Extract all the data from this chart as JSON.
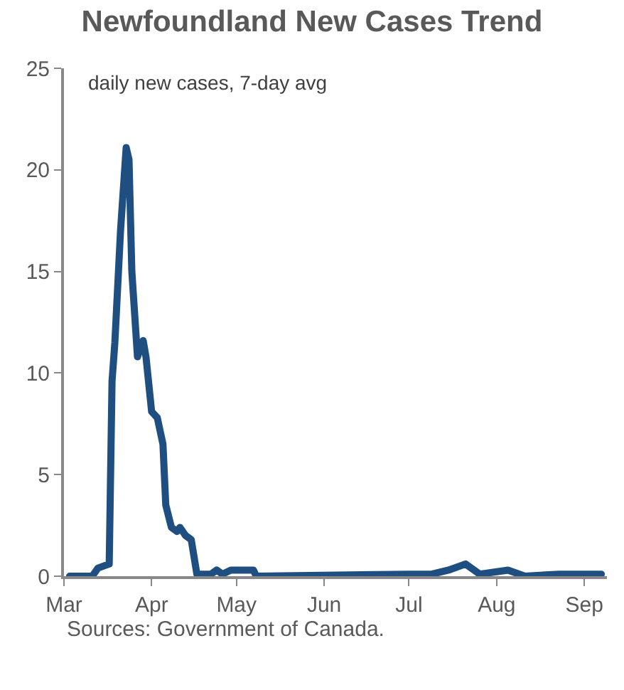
{
  "chart_data": {
    "type": "line",
    "title": "Newfoundland New Cases Trend",
    "subtitle": "daily new cases, 7-day avg",
    "x": [
      "--03-03",
      "--03-11",
      "--03-13",
      "--03-17",
      "--03-18",
      "--03-19",
      "--03-21",
      "--03-23",
      "--03-24",
      "--03-25",
      "--03-27",
      "--03-29",
      "--03-30",
      "--04-01",
      "--04-03",
      "--04-05",
      "--04-06",
      "--04-08",
      "--04-10",
      "--04-11",
      "--04-13",
      "--04-15",
      "--04-17",
      "--04-22",
      "--04-24",
      "--04-26",
      "--04-29",
      "--05-07",
      "--05-08",
      "--07-01",
      "--07-09",
      "--07-15",
      "--07-21",
      "--07-26",
      "--08-05",
      "--08-11",
      "--08-23",
      "--09-07"
    ],
    "series": [
      {
        "color": "#1f4e80",
        "values": [
          0,
          0,
          0.4,
          0.6,
          9.6,
          11.5,
          17,
          21.1,
          20.5,
          15,
          10.8,
          11.6,
          10.8,
          8.1,
          7.8,
          6.5,
          3.5,
          2.4,
          2.2,
          2.4,
          2,
          1.8,
          0.1,
          0.1,
          0.3,
          0.1,
          0.3,
          0.3,
          0,
          0.1,
          0.1,
          0.3,
          0.6,
          0.1,
          0.3,
          0,
          0.1,
          0.1
        ]
      }
    ],
    "xlim": [
      "--03-01",
      "--09-09"
    ],
    "xticks": [
      {
        "value": "--03-01",
        "label": "Mar"
      },
      {
        "value": "--04-01",
        "label": "Apr"
      },
      {
        "value": "--05-01",
        "label": "May"
      },
      {
        "value": "--06-01",
        "label": "Jun"
      },
      {
        "value": "--07-01",
        "label": "Jul"
      },
      {
        "value": "--08-01",
        "label": "Aug"
      },
      {
        "value": "--09-01",
        "label": "Sep"
      }
    ],
    "ylim": [
      0,
      25
    ],
    "yticks": [
      0,
      5,
      10,
      15,
      20,
      25
    ],
    "legend": false,
    "marker": "none",
    "line_style": "solid",
    "annotations": [
      "Sources: Government of Canada."
    ]
  }
}
